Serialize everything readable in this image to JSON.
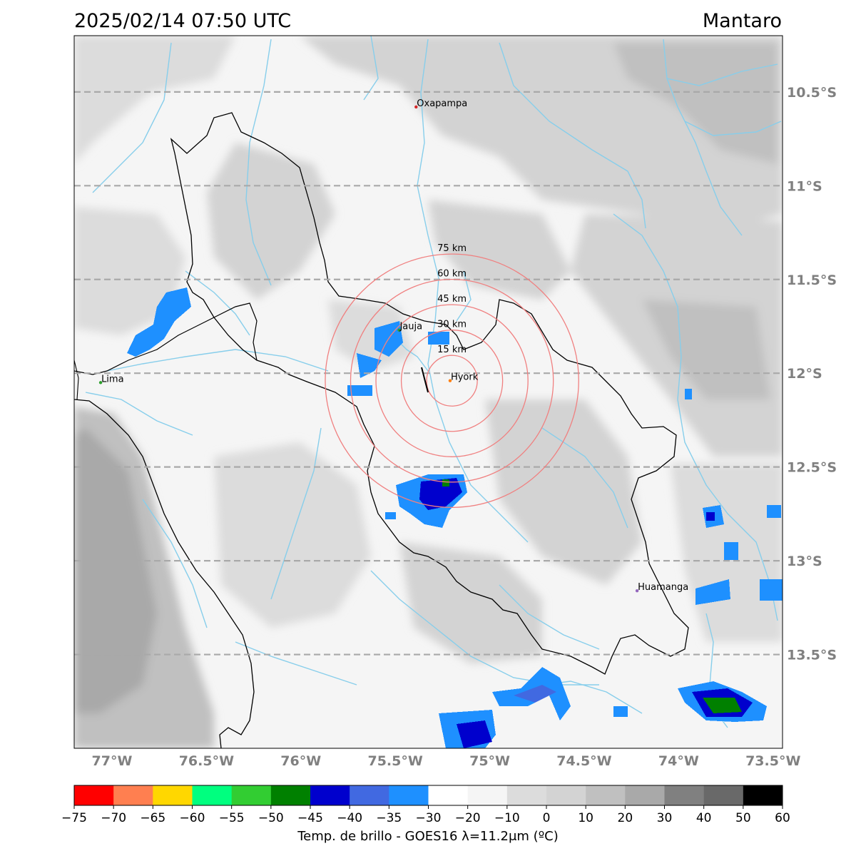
{
  "title": {
    "datetime": "2025/02/14 07:50 UTC",
    "region": "Mantaro"
  },
  "map": {
    "lon_range": [
      -77.2,
      -73.45
    ],
    "lat_range": [
      -14.0,
      -10.2
    ],
    "lat_lines": [
      {
        "value": -10.5,
        "label": "10.5°S"
      },
      {
        "value": -11.0,
        "label": "11°S"
      },
      {
        "value": -11.5,
        "label": "11.5°S"
      },
      {
        "value": -12.0,
        "label": "12°S"
      },
      {
        "value": -12.5,
        "label": "12.5°S"
      },
      {
        "value": -13.0,
        "label": "13°S"
      },
      {
        "value": -13.5,
        "label": "13.5°S"
      }
    ],
    "lon_ticks": [
      {
        "value": -77.0,
        "label": "77°W"
      },
      {
        "value": -76.5,
        "label": "76.5°W"
      },
      {
        "value": -76.0,
        "label": "76°W"
      },
      {
        "value": -75.5,
        "label": "75.5°W"
      },
      {
        "value": -75.0,
        "label": "75°W"
      },
      {
        "value": -74.5,
        "label": "74.5°W"
      },
      {
        "value": -74.0,
        "label": "74°W"
      },
      {
        "value": -73.5,
        "label": "73.5°W"
      }
    ],
    "cities": [
      {
        "name": "Oxapampa",
        "lon": -75.39,
        "lat": -10.58,
        "color": "#d62728"
      },
      {
        "name": "Jauja",
        "lon": -75.48,
        "lat": -11.77,
        "color": "#2ca02c"
      },
      {
        "name": "Lima",
        "lon": -77.06,
        "lat": -12.05,
        "color": "#2ca02c"
      },
      {
        "name": "Hyork",
        "lon": -75.21,
        "lat": -12.04,
        "color": "#ff7f0e"
      },
      {
        "name": "Huamanga",
        "lon": -74.22,
        "lat": -13.16,
        "color": "#9467bd"
      }
    ],
    "radar_center": {
      "lon": -75.2,
      "lat": -12.04
    },
    "range_rings": [
      {
        "label": "15 km",
        "radius_km": 15
      },
      {
        "label": "30 km",
        "radius_km": 30
      },
      {
        "label": "45 km",
        "radius_km": 45
      },
      {
        "label": "60 km",
        "radius_km": 60
      },
      {
        "label": "75 km",
        "radius_km": 75
      }
    ],
    "colors": {
      "grid": "#a9a9a9",
      "rivers": "#87ceeb",
      "rings": "#f08080",
      "boundary": "#000000"
    }
  },
  "colorbar": {
    "label": "Temp. de brillo - GOES16 λ=11.2μm (ºC)",
    "ticks": [
      "−75",
      "−70",
      "−65",
      "−60",
      "−55",
      "−50",
      "−45",
      "−40",
      "−35",
      "−30",
      "−20",
      "−10",
      "0",
      "10",
      "20",
      "30",
      "40",
      "50",
      "60"
    ],
    "colors": [
      "#ff0000",
      "#ff7f50",
      "#ffd700",
      "#00ff7f",
      "#32cd32",
      "#008000",
      "#0000cd",
      "#4169e1",
      "#1e90ff",
      "#ffffff",
      "#f5f5f5",
      "#dcdcdc",
      "#d3d3d3",
      "#c0c0c0",
      "#a9a9a9",
      "#808080",
      "#696969",
      "#000000"
    ]
  }
}
